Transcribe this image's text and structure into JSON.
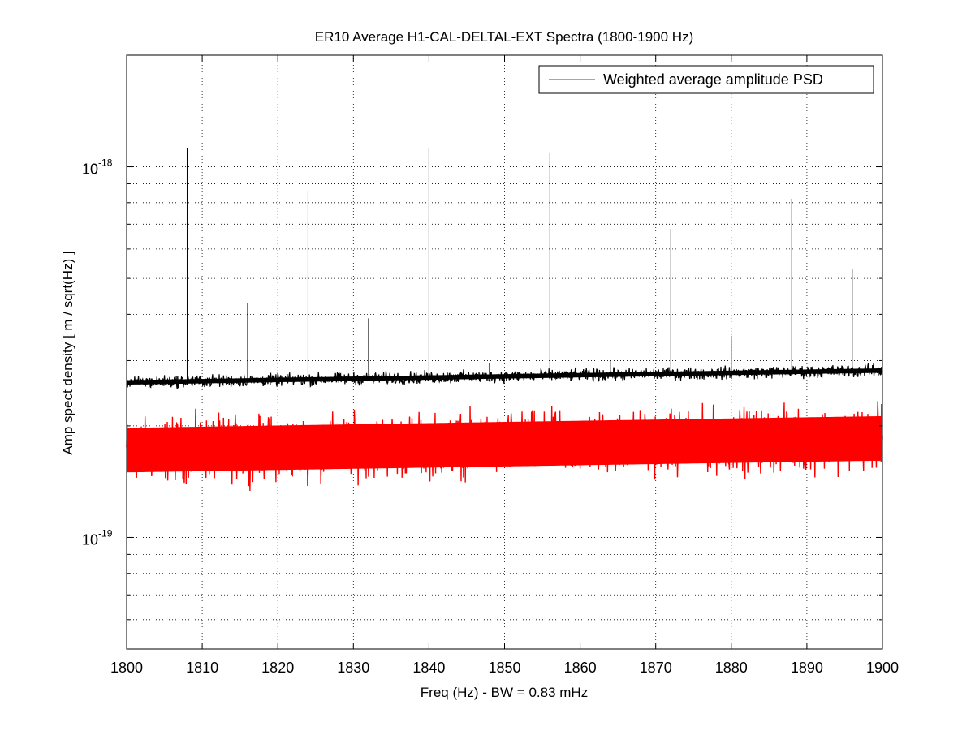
{
  "chart_data": {
    "type": "line",
    "title": "ER10 Average H1-CAL-DELTAL-EXT Spectra (1800-1900 Hz)",
    "xlabel": "Freq (Hz) - BW = 0.83 mHz",
    "ylabel": "Amp spect density [ m / sqrt(Hz) ]",
    "xlim": [
      1800,
      1900
    ],
    "ylim": [
      5e-20,
      2e-18
    ],
    "yscale": "log",
    "grid": true,
    "legend_position": "top-right",
    "x_ticks": [
      1800,
      1810,
      1820,
      1830,
      1840,
      1850,
      1860,
      1870,
      1880,
      1890,
      1900
    ],
    "x_tick_labels": [
      "1800",
      "1810",
      "1820",
      "1830",
      "1840",
      "1850",
      "1860",
      "1870",
      "1880",
      "1890",
      "1900"
    ],
    "y_major_ticks": [
      {
        "value": 1e-19,
        "base": "10",
        "exponent": "-19"
      },
      {
        "value": 1e-18,
        "base": "10",
        "exponent": "-18"
      }
    ],
    "series": [
      {
        "name": "",
        "color": "#000000",
        "baseline_start": 2.62e-19,
        "baseline_end": 2.82e-19,
        "noise_spread": 0.018,
        "peaks": [
          {
            "x": 1808,
            "y": 1.12e-18
          },
          {
            "x": 1816,
            "y": 4.3e-19
          },
          {
            "x": 1824,
            "y": 8.6e-19
          },
          {
            "x": 1832,
            "y": 3.9e-19
          },
          {
            "x": 1840,
            "y": 1.12e-18
          },
          {
            "x": 1848,
            "y": 2.95e-19
          },
          {
            "x": 1856,
            "y": 1.09e-18
          },
          {
            "x": 1864,
            "y": 3e-19
          },
          {
            "x": 1872,
            "y": 6.8e-19
          },
          {
            "x": 1880,
            "y": 3.5e-19
          },
          {
            "x": 1888,
            "y": 8.2e-19
          },
          {
            "x": 1896,
            "y": 5.3e-19
          }
        ]
      },
      {
        "name": "Weighted average amplitude PSD",
        "color": "#ff0000",
        "baseline_start": 1.72e-19,
        "baseline_end": 1.85e-19,
        "noise_spread": 0.09
      }
    ]
  }
}
